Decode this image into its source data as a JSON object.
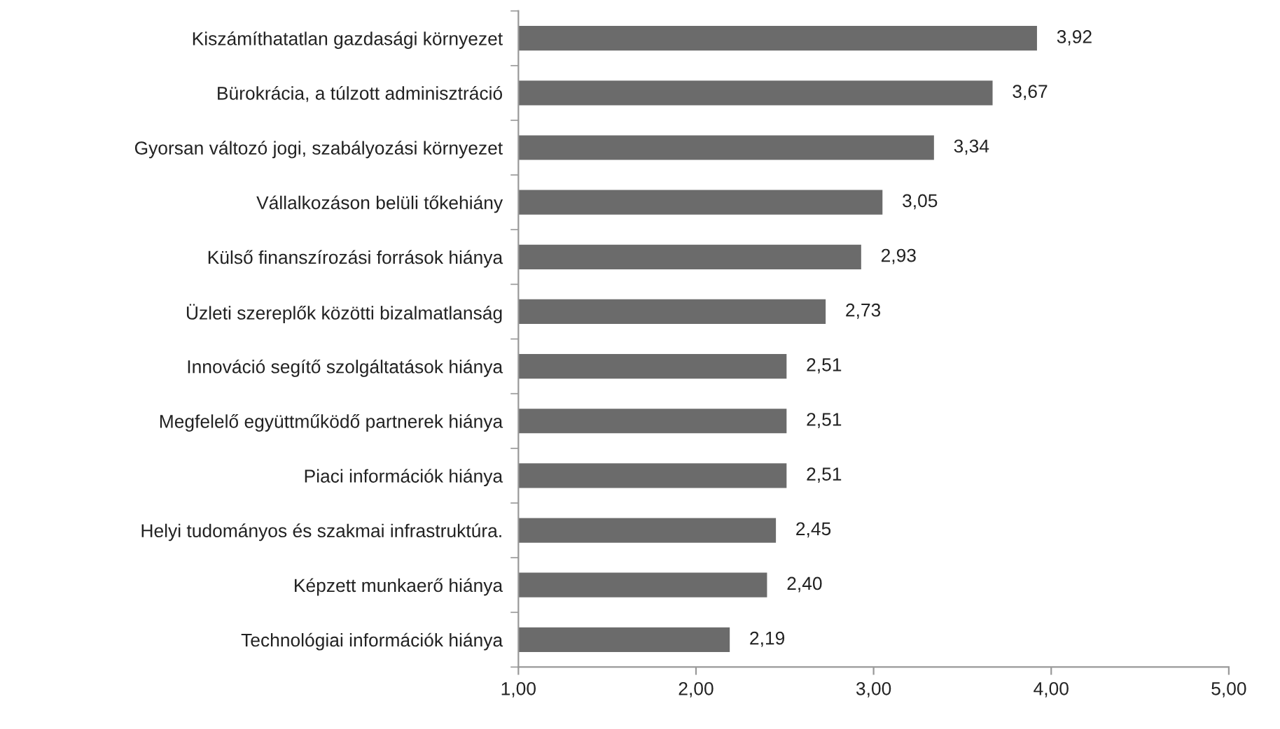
{
  "chart_data": {
    "type": "bar",
    "orientation": "horizontal",
    "categories": [
      "Kiszámíthatatlan gazdasági környezet",
      "Bürokrácia, a túlzott adminisztráció",
      "Gyorsan változó jogi, szabályozási környezet",
      "Vállalkozáson belüli tőkehiány",
      "Külső finanszírozási források hiánya",
      "Üzleti szereplők közötti bizalmatlanság",
      "Innováció segítő szolgáltatások hiánya",
      "Megfelelő együttműködő partnerek hiánya",
      "Piaci információk hiánya",
      "Helyi tudományos és szakmai infrastruktúra.",
      "Képzett munkaerő hiánya",
      "Technológiai információk hiánya"
    ],
    "values": [
      3.92,
      3.67,
      3.34,
      3.05,
      2.93,
      2.73,
      2.51,
      2.51,
      2.51,
      2.45,
      2.4,
      2.19
    ],
    "value_labels": [
      "3,92",
      "3,67",
      "3,34",
      "3,05",
      "2,93",
      "2,73",
      "2,51",
      "2,51",
      "2,51",
      "2,45",
      "2,40",
      "2,19"
    ],
    "color": "#6b6b6b",
    "xlim": [
      1,
      5
    ],
    "xticks": [
      {
        "value": 1,
        "label": "1,00"
      },
      {
        "value": 2,
        "label": "2,00"
      },
      {
        "value": 3,
        "label": "3,00"
      },
      {
        "value": 4,
        "label": "4,00"
      },
      {
        "value": 5,
        "label": "5,00"
      }
    ],
    "grid": false,
    "legend": false
  }
}
